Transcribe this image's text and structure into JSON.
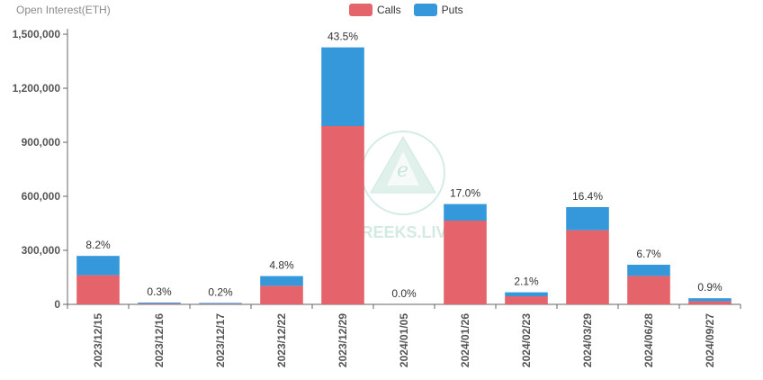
{
  "y_title": "Open Interest(ETH)",
  "legend": {
    "calls_label": "Calls",
    "puts_label": "Puts"
  },
  "colors": {
    "calls": "#e5636a",
    "puts": "#3498db",
    "axis": "#666666",
    "grid": "#e8e8e8"
  },
  "watermark": "GREEKS.LIVE",
  "chart_data": {
    "type": "bar",
    "stacked": true,
    "categories": [
      "2023/12/15",
      "2023/12/16",
      "2023/12/17",
      "2023/12/22",
      "2023/12/29",
      "2024/01/05",
      "2024/01/26",
      "2024/02/23",
      "2024/03/29",
      "2024/06/28",
      "2024/09/27"
    ],
    "series": [
      {
        "name": "Calls",
        "values": [
          162000,
          4000,
          3000,
          103000,
          990000,
          0,
          465000,
          45000,
          412000,
          158000,
          17000
        ]
      },
      {
        "name": "Puts",
        "values": [
          107000,
          6000,
          5000,
          54000,
          437000,
          0,
          92000,
          22000,
          128000,
          62000,
          17000
        ]
      }
    ],
    "bar_labels": [
      "8.2%",
      "0.3%",
      "0.2%",
      "4.8%",
      "43.5%",
      "0.0%",
      "17.0%",
      "2.1%",
      "16.4%",
      "6.7%",
      "0.9%"
    ],
    "y_ticks": [
      "0",
      "300,000",
      "600,000",
      "900,000",
      "1,200,000",
      "1,500,000"
    ],
    "ylim": [
      0,
      1500000
    ],
    "ylabel": "Open Interest(ETH)",
    "legend_position": "top-center",
    "grid": false
  }
}
